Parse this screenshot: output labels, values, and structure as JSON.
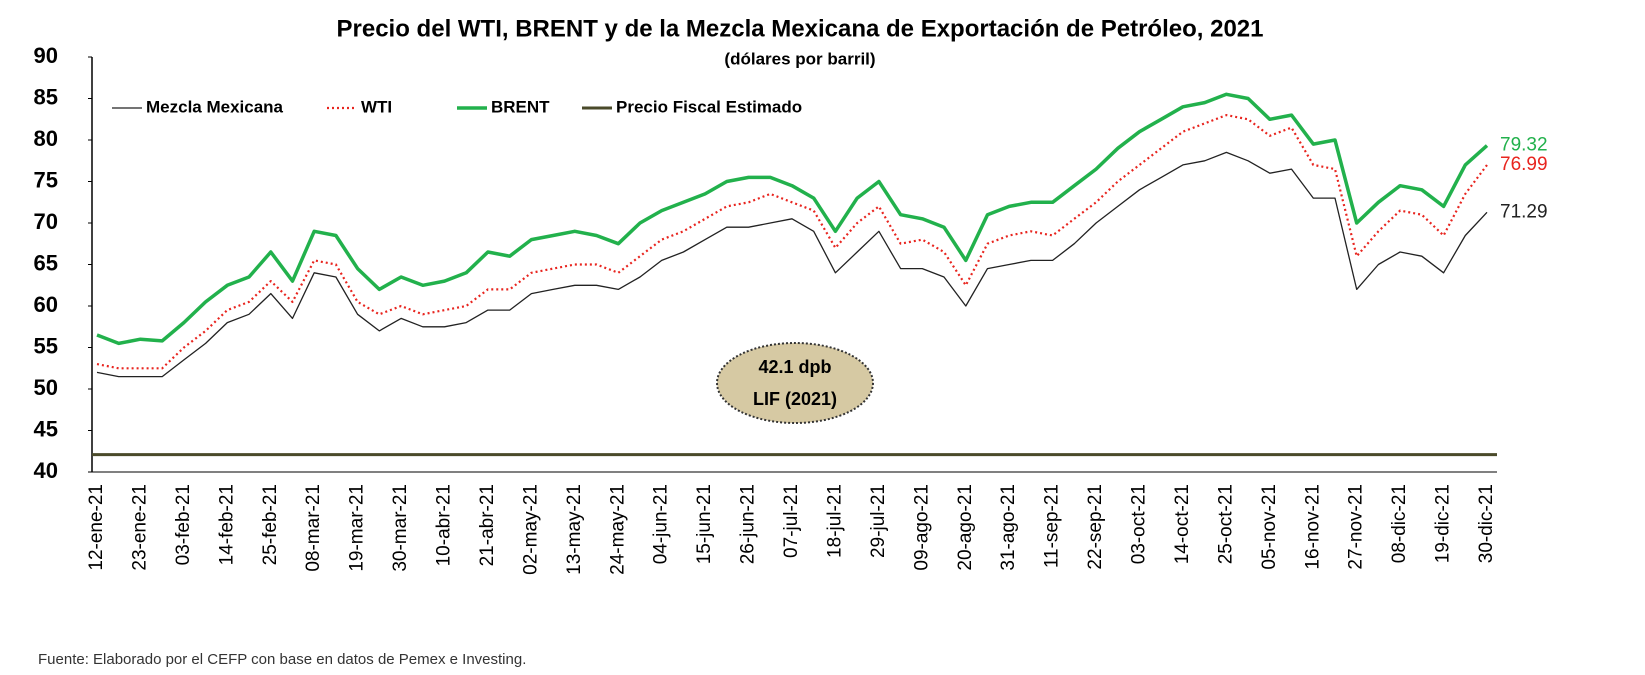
{
  "chart_data": {
    "type": "line",
    "title": "Precio del WTI, BRENT y de la Mezcla Mexicana de Exportación de Petróleo, 2021",
    "subtitle": "(dólares por barril)",
    "source": "Fuente: Elaborado por el CEFP con base en datos de Pemex e Investing.",
    "categories": [
      "12-ene-21",
      null,
      "23-ene-21",
      null,
      "03-feb-21",
      null,
      "14-feb-21",
      null,
      "25-feb-21",
      null,
      "08-mar-21",
      null,
      "19-mar-21",
      null,
      "30-mar-21",
      null,
      "10-abr-21",
      null,
      "21-abr-21",
      null,
      "02-may-21",
      null,
      "13-may-21",
      null,
      "24-may-21",
      null,
      "04-jun-21",
      null,
      "15-jun-21",
      null,
      "26-jun-21",
      null,
      "07-jul-21",
      null,
      "18-jul-21",
      null,
      "29-jul-21",
      null,
      "09-ago-21",
      null,
      "20-ago-21",
      null,
      "31-ago-21",
      null,
      "11-sep-21",
      null,
      "22-sep-21",
      null,
      "03-oct-21",
      null,
      "14-oct-21",
      null,
      "25-oct-21",
      null,
      "05-nov-21",
      null,
      "16-nov-21",
      null,
      "27-nov-21",
      null,
      "08-dic-21",
      null,
      "19-dic-21",
      null,
      "30-dic-21"
    ],
    "series": [
      {
        "name": "Mezcla Mexicana",
        "color": "#222222",
        "style": "thin",
        "values": [
          52,
          51.5,
          51.5,
          51.5,
          53.5,
          55.5,
          58,
          59,
          61.5,
          58.5,
          64,
          63.5,
          59,
          57,
          58.5,
          57.5,
          57.5,
          58,
          59.5,
          59.5,
          61.5,
          62,
          62.5,
          62.5,
          62,
          63.5,
          65.5,
          66.5,
          68,
          69.5,
          69.5,
          70,
          70.5,
          69,
          64,
          66.5,
          69,
          64.5,
          64.5,
          63.5,
          60,
          64.5,
          65,
          65.5,
          65.5,
          67.5,
          70,
          72,
          74,
          75.5,
          77,
          77.5,
          78.5,
          77.5,
          76,
          76.5,
          73,
          73,
          62,
          65,
          66.5,
          66,
          64,
          68.5,
          71.29
        ]
      },
      {
        "name": "WTI",
        "color": "#e8251f",
        "style": "dotted",
        "values": [
          53,
          52.5,
          52.5,
          52.5,
          55,
          57,
          59.5,
          60.5,
          63,
          60.5,
          65.5,
          65,
          60.5,
          59,
          60,
          59,
          59.5,
          60,
          62,
          62,
          64,
          64.5,
          65,
          65,
          64,
          66,
          68,
          69,
          70.5,
          72,
          72.5,
          73.5,
          72.5,
          71.5,
          67,
          70,
          72,
          67.5,
          68,
          66.5,
          62.5,
          67.5,
          68.5,
          69,
          68.5,
          70.5,
          72.5,
          75,
          77,
          79,
          81,
          82,
          83,
          82.5,
          80.5,
          81.5,
          77,
          76.5,
          66,
          69,
          71.5,
          71,
          68.5,
          73.5,
          76.99
        ]
      },
      {
        "name": "BRENT",
        "color": "#22b14c",
        "style": "thick",
        "values": [
          56.5,
          55.5,
          56,
          55.8,
          58,
          60.5,
          62.5,
          63.5,
          66.5,
          63,
          69,
          68.5,
          64.5,
          62,
          63.5,
          62.5,
          63,
          64,
          66.5,
          66,
          68,
          68.5,
          69,
          68.5,
          67.5,
          70,
          71.5,
          72.5,
          73.5,
          75,
          75.5,
          75.5,
          74.5,
          73,
          69,
          73,
          75,
          71,
          70.5,
          69.5,
          65.5,
          71,
          72,
          72.5,
          72.5,
          74.5,
          76.5,
          79,
          81,
          82.5,
          84,
          84.5,
          85.5,
          85,
          82.5,
          83,
          79.5,
          80,
          70,
          72.5,
          74.5,
          74,
          72,
          77,
          79.32
        ]
      }
    ],
    "reference_line": {
      "name": "Precio Fiscal Estimado",
      "value": 42.1,
      "color": "#4a4a2a"
    },
    "annotation": {
      "lines": [
        "42.1 dpb",
        "LIF (2021)"
      ],
      "color": "#d6c9a3"
    },
    "ylim": [
      40,
      90
    ],
    "yticks": [
      40,
      45,
      50,
      55,
      60,
      65,
      70,
      75,
      80,
      85,
      90
    ],
    "legend": "upper left",
    "grid": false
  }
}
